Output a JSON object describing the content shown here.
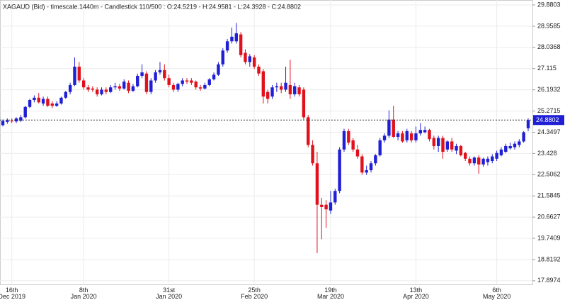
{
  "chart_data": {
    "type": "candlestick",
    "title": "XAGAUD (Bid) - timescale.1440m - Candlestick  110/500 : O:24.5219 - H:24.9581 - L:24.3928 - C:24.8802",
    "categories": [
      null,
      null,
      "16th\nDec 2019",
      null,
      null,
      null,
      null,
      null,
      null,
      null,
      null,
      null,
      null,
      null,
      null,
      null,
      null,
      null,
      "8th\nJan 2020",
      null,
      null,
      null,
      null,
      null,
      null,
      null,
      null,
      null,
      null,
      null,
      null,
      null,
      null,
      null,
      null,
      null,
      null,
      "31st\nJan 2020",
      null,
      null,
      null,
      null,
      null,
      null,
      null,
      null,
      null,
      null,
      null,
      null,
      null,
      null,
      null,
      null,
      null,
      null,
      "25th\nFeb 2020",
      null,
      null,
      null,
      null,
      null,
      null,
      null,
      null,
      null,
      null,
      null,
      null,
      null,
      null,
      null,
      null,
      "19th\nMar 2020",
      null,
      null,
      null,
      null,
      null,
      null,
      null,
      null,
      null,
      null,
      null,
      null,
      null,
      null,
      null,
      null,
      null,
      null,
      "13th\nApr 2020",
      null,
      null,
      null,
      null,
      null,
      null,
      null,
      null,
      null,
      null,
      null,
      null,
      null,
      null,
      null,
      null,
      null,
      "6th\nMay 2020",
      null,
      null,
      null,
      null,
      null,
      null,
      null
    ],
    "open": [
      24.66,
      24.8,
      24.85,
      24.82,
      24.85,
      25.0,
      25.45,
      25.75,
      25.85,
      25.6,
      25.8,
      25.6,
      25.5,
      25.6,
      25.85,
      26.1,
      26.4,
      27.2,
      26.6,
      26.3,
      26.25,
      26.2,
      26.0,
      26.2,
      26.1,
      26.3,
      26.35,
      26.25,
      26.5,
      26.15,
      26.35,
      26.8,
      26.9,
      26.1,
      26.6,
      26.95,
      27.05,
      26.7,
      26.4,
      26.2,
      26.45,
      26.6,
      26.6,
      26.55,
      26.3,
      26.25,
      26.4,
      26.65,
      26.85,
      27.3,
      27.9,
      28.3,
      28.3,
      28.6,
      27.8,
      27.4,
      27.6,
      27.2,
      27.0,
      26.1,
      25.9,
      26.3,
      26.35,
      26.2,
      26.4,
      26.0,
      26.3,
      26.2,
      25.0,
      23.8,
      23.0,
      21.2,
      21.2,
      20.95,
      21.3,
      21.8,
      23.6,
      24.4,
      24.0,
      23.6,
      23.3,
      22.6,
      22.7,
      23.0,
      23.35,
      24.0,
      24.2,
      24.9,
      24.15,
      24.3,
      24.0,
      24.3,
      24.0,
      24.3,
      24.35,
      24.45,
      24.1,
      23.75,
      24.1,
      23.6,
      23.95,
      23.55,
      23.75,
      23.45,
      23.2,
      23.0,
      23.25,
      22.95,
      23.05,
      23.1,
      23.2,
      23.35,
      23.5,
      23.65,
      23.7,
      23.8,
      23.95,
      24.5219
    ],
    "high": [
      24.9,
      24.95,
      24.95,
      25.0,
      25.1,
      25.5,
      25.8,
      25.95,
      26.05,
      25.9,
      25.9,
      25.7,
      25.7,
      25.9,
      26.15,
      26.5,
      27.6,
      27.4,
      26.7,
      26.4,
      26.35,
      26.3,
      26.3,
      26.3,
      26.4,
      26.5,
      26.45,
      26.65,
      26.6,
      26.45,
      26.9,
      27.3,
      27.0,
      26.7,
      27.05,
      27.4,
      27.3,
      26.85,
      26.5,
      26.5,
      26.7,
      26.7,
      26.7,
      26.6,
      26.4,
      26.5,
      26.7,
      26.95,
      27.4,
      28.0,
      28.4,
      28.9,
      29.1,
      28.7,
      27.95,
      27.75,
      27.7,
      27.3,
      27.1,
      26.2,
      26.4,
      26.5,
      26.5,
      27.2,
      27.5,
      26.5,
      26.4,
      26.3,
      25.1,
      24.0,
      23.5,
      21.5,
      21.4,
      21.8,
      21.9,
      23.7,
      24.5,
      24.5,
      24.1,
      23.8,
      23.4,
      22.9,
      23.1,
      23.4,
      24.1,
      24.3,
      25.3,
      25.5,
      24.4,
      24.4,
      24.5,
      24.4,
      24.6,
      24.75,
      24.6,
      24.5,
      24.2,
      24.2,
      24.2,
      24.0,
      24.1,
      23.85,
      23.8,
      23.5,
      23.3,
      23.3,
      23.35,
      23.25,
      23.3,
      23.4,
      23.55,
      23.7,
      23.85,
      23.9,
      23.95,
      24.05,
      24.4,
      24.9581
    ],
    "low": [
      24.6,
      24.72,
      24.75,
      24.75,
      24.8,
      24.95,
      25.4,
      25.65,
      25.6,
      25.5,
      25.45,
      25.4,
      25.45,
      25.55,
      25.8,
      26.0,
      26.35,
      26.5,
      26.2,
      26.1,
      26.1,
      25.9,
      25.95,
      26.0,
      26.05,
      26.2,
      26.15,
      26.2,
      26.05,
      26.1,
      26.3,
      26.7,
      26.0,
      26.0,
      26.5,
      26.85,
      26.6,
      26.3,
      26.1,
      26.1,
      26.35,
      26.45,
      26.4,
      26.2,
      26.15,
      26.2,
      26.35,
      26.6,
      26.8,
      27.2,
      27.8,
      28.2,
      28.2,
      27.6,
      27.3,
      27.2,
      27.1,
      26.8,
      25.6,
      25.6,
      25.8,
      26.1,
      26.05,
      26.1,
      25.8,
      25.9,
      25.9,
      24.9,
      23.7,
      22.9,
      19.1,
      19.7,
      20.2,
      20.8,
      21.2,
      21.7,
      23.5,
      23.8,
      23.5,
      23.2,
      22.5,
      22.5,
      22.6,
      22.9,
      23.3,
      23.9,
      24.1,
      24.1,
      24.0,
      23.9,
      23.9,
      23.9,
      23.9,
      24.2,
      24.3,
      23.95,
      23.6,
      23.5,
      23.2,
      23.5,
      23.5,
      23.4,
      23.3,
      23.1,
      22.9,
      22.9,
      22.55,
      22.85,
      22.9,
      23.0,
      23.1,
      23.3,
      23.45,
      23.6,
      23.6,
      23.7,
      23.9,
      24.3928
    ],
    "close": [
      24.84,
      24.87,
      24.82,
      24.95,
      25.0,
      25.45,
      25.75,
      25.85,
      25.65,
      25.8,
      25.5,
      25.5,
      25.6,
      25.85,
      26.1,
      26.4,
      27.2,
      26.6,
      26.3,
      26.2,
      26.2,
      26.0,
      26.2,
      26.1,
      26.3,
      26.35,
      26.25,
      26.55,
      26.15,
      26.35,
      26.8,
      26.95,
      26.1,
      26.6,
      26.95,
      27.05,
      26.7,
      26.4,
      26.2,
      26.45,
      26.6,
      26.55,
      26.5,
      26.3,
      26.25,
      26.4,
      26.65,
      26.85,
      27.3,
      27.9,
      28.3,
      28.5,
      28.65,
      27.7,
      27.4,
      27.65,
      27.2,
      26.9,
      25.9,
      25.8,
      26.3,
      26.35,
      26.2,
      26.5,
      26.0,
      26.35,
      26.0,
      25.0,
      23.8,
      23.0,
      21.2,
      21.1,
      21.0,
      21.3,
      21.8,
      23.6,
      24.4,
      23.9,
      23.6,
      23.3,
      22.6,
      22.7,
      23.0,
      23.35,
      24.0,
      24.2,
      24.9,
      24.15,
      24.3,
      23.95,
      24.4,
      24.0,
      24.3,
      24.45,
      24.45,
      24.05,
      23.75,
      24.1,
      23.5,
      23.95,
      23.6,
      23.75,
      23.35,
      23.2,
      23.0,
      23.25,
      22.95,
      23.2,
      23.2,
      23.3,
      23.45,
      23.6,
      23.75,
      23.75,
      23.85,
      23.95,
      24.35,
      24.8802
    ],
    "up_color": "#1f1fd6",
    "down_color": "#e0101c",
    "last_price": 24.8802,
    "ylim": [
      17.77,
      30.096
    ],
    "yticks": [
      29.8803,
      28.9585,
      28.0368,
      27.115,
      26.1932,
      25.2715,
      24.3497,
      23.428,
      22.5062,
      21.5845,
      20.6627,
      19.7409,
      18.8192,
      17.8974
    ],
    "grid": true
  }
}
